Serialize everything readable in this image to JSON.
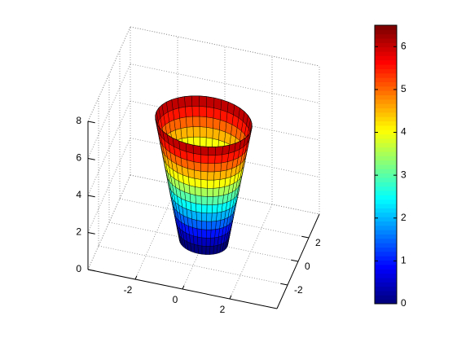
{
  "chart_data": {
    "type": "surface3d",
    "colormap": "jet",
    "surface": {
      "z": [
        0,
        0.5,
        1,
        1.5,
        2,
        2.5,
        3,
        3.5,
        4,
        4.5,
        5,
        5.5,
        6,
        6.5
      ],
      "radius": [
        1,
        1.077,
        1.154,
        1.231,
        1.308,
        1.385,
        1.462,
        1.538,
        1.615,
        1.692,
        1.769,
        1.846,
        1.923,
        2
      ]
    },
    "xlim": [
      -4,
      4
    ],
    "ylim": [
      -4,
      4
    ],
    "zlim": [
      0,
      8
    ],
    "xticks": [
      -2,
      0,
      2
    ],
    "yticks": [
      -2,
      0,
      2
    ],
    "zticks": [
      0,
      2,
      4,
      6,
      8
    ],
    "grid": true,
    "colorbar": {
      "clim": [
        0,
        6.5
      ],
      "ticks": [
        0,
        1,
        2,
        3,
        4,
        5,
        6
      ]
    }
  }
}
